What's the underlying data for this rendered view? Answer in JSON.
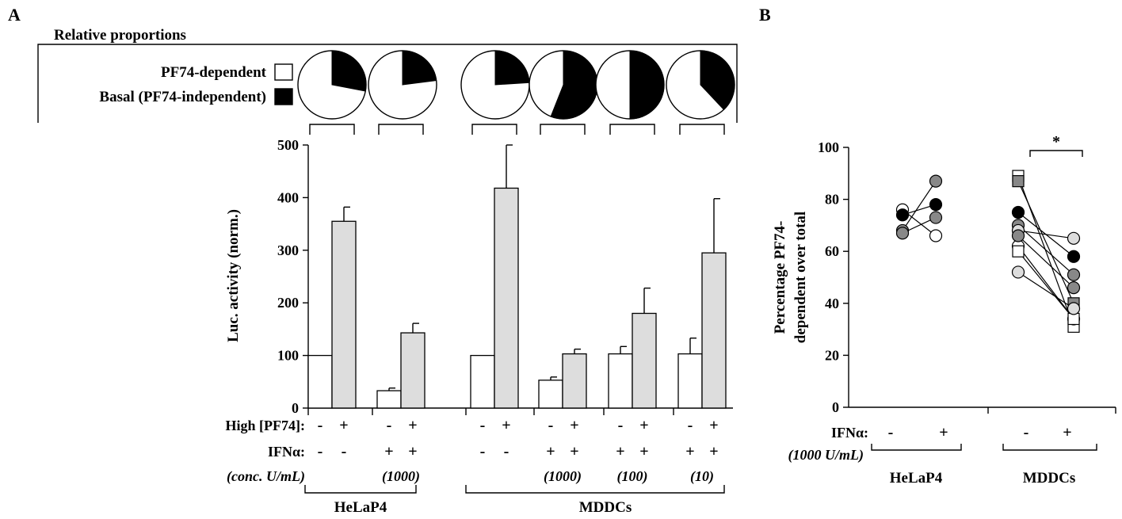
{
  "panel_a_letter": "A",
  "panel_b_letter": "B",
  "colors": {
    "white": "#ffffff",
    "black": "#000000",
    "light_grey": "#dddddd",
    "mid_grey": "#888888",
    "bar_grey": "#dddddd"
  },
  "pie_box": {
    "title": "Relative proportions",
    "legend": [
      {
        "label": "PF74-dependent",
        "color": "#ffffff"
      },
      {
        "label": "Basal (PF74-independent)",
        "color": "#000000"
      }
    ],
    "pies": [
      {
        "group": "HeLaP4 -IFN",
        "pf74_dependent_pct": 72
      },
      {
        "group": "HeLaP4 +IFN 1000",
        "pf74_dependent_pct": 77
      },
      {
        "group": "MDDCs -IFN",
        "pf74_dependent_pct": 76
      },
      {
        "group": "MDDCs +IFN 1000",
        "pf74_dependent_pct": 44
      },
      {
        "group": "MDDCs +IFN 100",
        "pf74_dependent_pct": 50
      },
      {
        "group": "MDDCs +IFN 10",
        "pf74_dependent_pct": 62
      }
    ]
  },
  "chart_data": [
    {
      "type": "bar",
      "panel": "A",
      "ylabel": "Luc. activity (norm.)",
      "ylim": [
        0,
        500
      ],
      "yticks": [
        0,
        100,
        200,
        300,
        400,
        500
      ],
      "row_labels": {
        "high_pf74": "High [PF74]:",
        "ifn": "IFNα:",
        "conc": "(conc. U/mL)"
      },
      "groups": [
        {
          "cell": "HeLaP4",
          "ifn_conc": "",
          "bars": [
            {
              "pf74": "-",
              "ifn": "-",
              "value": 100,
              "error": 0,
              "color": "#ffffff"
            },
            {
              "pf74": "+",
              "ifn": "-",
              "value": 355,
              "error": 27,
              "color": "#dddddd"
            }
          ]
        },
        {
          "cell": "HeLaP4",
          "ifn_conc": "(1000)",
          "bars": [
            {
              "pf74": "-",
              "ifn": "+",
              "value": 33,
              "error": 5,
              "color": "#ffffff"
            },
            {
              "pf74": "+",
              "ifn": "+",
              "value": 143,
              "error": 18,
              "color": "#dddddd"
            }
          ]
        },
        {
          "cell": "MDDCs",
          "ifn_conc": "",
          "bars": [
            {
              "pf74": "-",
              "ifn": "-",
              "value": 100,
              "error": 0,
              "color": "#ffffff"
            },
            {
              "pf74": "+",
              "ifn": "-",
              "value": 418,
              "error": 82,
              "color": "#dddddd"
            }
          ]
        },
        {
          "cell": "MDDCs",
          "ifn_conc": "(1000)",
          "bars": [
            {
              "pf74": "-",
              "ifn": "+",
              "value": 53,
              "error": 6,
              "color": "#ffffff"
            },
            {
              "pf74": "+",
              "ifn": "+",
              "value": 103,
              "error": 9,
              "color": "#dddddd"
            }
          ]
        },
        {
          "cell": "MDDCs",
          "ifn_conc": "(100)",
          "bars": [
            {
              "pf74": "-",
              "ifn": "+",
              "value": 103,
              "error": 14,
              "color": "#ffffff"
            },
            {
              "pf74": "+",
              "ifn": "+",
              "value": 180,
              "error": 48,
              "color": "#dddddd"
            }
          ]
        },
        {
          "cell": "MDDCs",
          "ifn_conc": "(10)",
          "bars": [
            {
              "pf74": "-",
              "ifn": "+",
              "value": 103,
              "error": 30,
              "color": "#ffffff"
            },
            {
              "pf74": "+",
              "ifn": "+",
              "value": 295,
              "error": 103,
              "color": "#dddddd"
            }
          ]
        }
      ],
      "group_labels": [
        "HeLaP4",
        "MDDCs"
      ]
    },
    {
      "type": "scatter",
      "panel": "B",
      "ylabel_lines": [
        "Percentage PF74-",
        "dependent over total"
      ],
      "ylim": [
        0,
        100
      ],
      "yticks": [
        0,
        20,
        40,
        60,
        80,
        100
      ],
      "row_labels": {
        "ifn": "IFNα:",
        "conc": "(1000 U/mL)"
      },
      "x_categories": [
        "-",
        "+",
        "-",
        "+"
      ],
      "group_labels": [
        "HeLaP4",
        "MDDCs"
      ],
      "significance": "*",
      "series": [
        {
          "group": "HeLaP4",
          "marker": "circle",
          "color": "#ffffff",
          "values": [
            76,
            66
          ]
        },
        {
          "group": "HeLaP4",
          "marker": "circle",
          "color": "#000000",
          "values": [
            74,
            78
          ]
        },
        {
          "group": "HeLaP4",
          "marker": "circle",
          "color": "#888888",
          "values": [
            68,
            87
          ]
        },
        {
          "group": "HeLaP4",
          "marker": "circle",
          "color": "#888888",
          "values": [
            67,
            73
          ]
        },
        {
          "group": "MDDCs",
          "marker": "square",
          "color": "#ffffff",
          "values": [
            89,
            31
          ]
        },
        {
          "group": "MDDCs",
          "marker": "square",
          "color": "#888888",
          "values": [
            87,
            40
          ]
        },
        {
          "group": "MDDCs",
          "marker": "circle",
          "color": "#000000",
          "values": [
            75,
            58
          ]
        },
        {
          "group": "MDDCs",
          "marker": "circle",
          "color": "#888888",
          "values": [
            70,
            51
          ]
        },
        {
          "group": "MDDCs",
          "marker": "circle",
          "color": "#dddddd",
          "values": [
            68,
            65
          ]
        },
        {
          "group": "MDDCs",
          "marker": "circle",
          "color": "#ffffff",
          "values": [
            62,
            34
          ]
        },
        {
          "group": "MDDCs",
          "marker": "square",
          "color": "#ffffff",
          "values": [
            60,
            34
          ]
        },
        {
          "group": "MDDCs",
          "marker": "circle",
          "color": "#888888",
          "values": [
            66,
            46
          ]
        },
        {
          "group": "MDDCs",
          "marker": "circle",
          "color": "#dddddd",
          "values": [
            52,
            38
          ]
        }
      ]
    }
  ]
}
